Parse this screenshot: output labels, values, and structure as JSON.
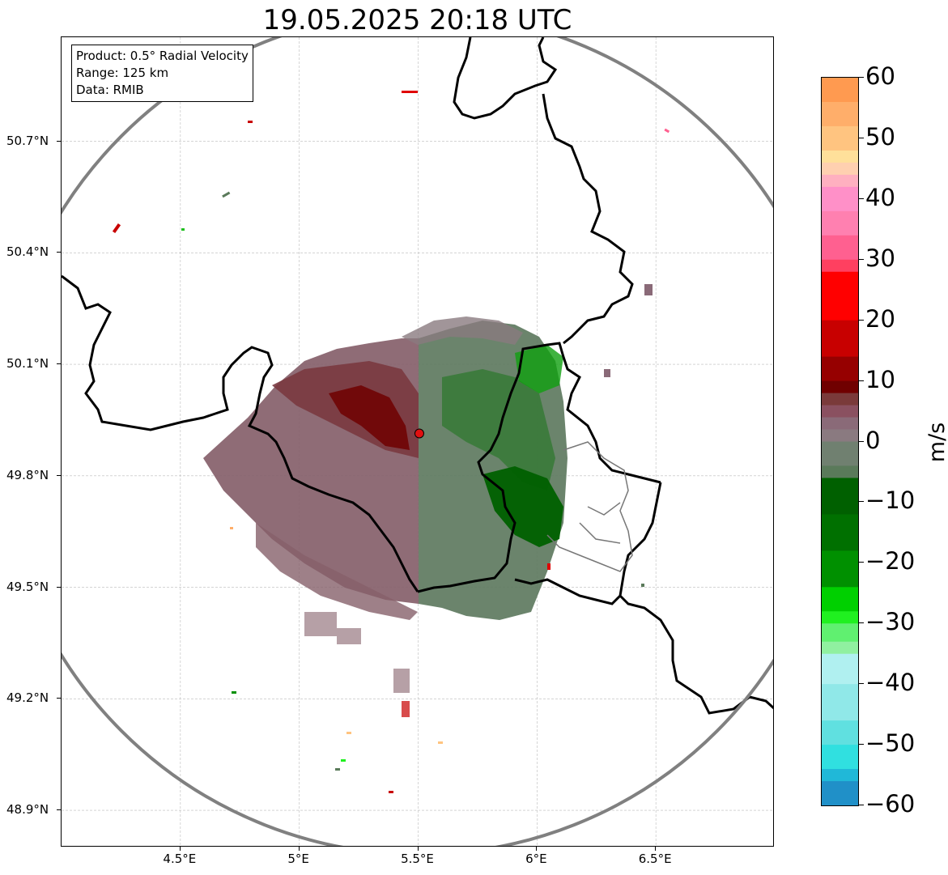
{
  "title": "19.05.2025 20:18 UTC",
  "info_box": {
    "product": "Product: 0.5° Radial Velocity",
    "range": "Range: 125 km",
    "data": "Data: RMIB"
  },
  "axes": {
    "lon_range": [
      4.0,
      7.0
    ],
    "lat_range": [
      48.8,
      50.98
    ],
    "lon_ticks": [
      {
        "value": 4.5,
        "label": "4.5°E"
      },
      {
        "value": 5.0,
        "label": "5°E"
      },
      {
        "value": 5.5,
        "label": "5.5°E"
      },
      {
        "value": 6.0,
        "label": "6°E"
      },
      {
        "value": 6.5,
        "label": "6.5°E"
      }
    ],
    "lat_ticks": [
      {
        "value": 50.7,
        "label": "50.7°N"
      },
      {
        "value": 50.4,
        "label": "50.4°N"
      },
      {
        "value": 50.1,
        "label": "50.1°N"
      },
      {
        "value": 49.8,
        "label": "49.8°N"
      },
      {
        "value": 49.5,
        "label": "49.5°N"
      },
      {
        "value": 49.2,
        "label": "49.2°N"
      },
      {
        "value": 48.9,
        "label": "48.9°N"
      }
    ],
    "gridlines": true
  },
  "radar": {
    "site_lon": 5.505,
    "site_lat": 49.914,
    "site_marker_color": "#e01010",
    "range_ring_color": "#808080"
  },
  "colorbar": {
    "unit": "m/s",
    "min": -60,
    "max": 60,
    "ticks": [
      {
        "value": 60,
        "label": "60"
      },
      {
        "value": 50,
        "label": "50"
      },
      {
        "value": 40,
        "label": "40"
      },
      {
        "value": 30,
        "label": "30"
      },
      {
        "value": 20,
        "label": "20"
      },
      {
        "value": 10,
        "label": "10"
      },
      {
        "value": 0,
        "label": "0"
      },
      {
        "value": -10,
        "label": "−10"
      },
      {
        "value": -20,
        "label": "−20"
      },
      {
        "value": -30,
        "label": "−30"
      },
      {
        "value": -40,
        "label": "−40"
      },
      {
        "value": -50,
        "label": "−50"
      },
      {
        "value": -60,
        "label": "−60"
      }
    ],
    "stops": [
      {
        "v": 60,
        "color": "#ff9a50"
      },
      {
        "v": 56,
        "color": "#ffae6a"
      },
      {
        "v": 52,
        "color": "#ffc480"
      },
      {
        "v": 48,
        "color": "#ffe09a"
      },
      {
        "v": 46,
        "color": "#ffd0b0"
      },
      {
        "v": 44,
        "color": "#ffb0c0"
      },
      {
        "v": 42,
        "color": "#ff90c8"
      },
      {
        "v": 38,
        "color": "#ff80b0"
      },
      {
        "v": 34,
        "color": "#ff6090"
      },
      {
        "v": 30,
        "color": "#ff4060"
      },
      {
        "v": 28,
        "color": "#ff0000"
      },
      {
        "v": 20,
        "color": "#c80000"
      },
      {
        "v": 14,
        "color": "#960000"
      },
      {
        "v": 10,
        "color": "#700000"
      },
      {
        "v": 8,
        "color": "#7a3a3a"
      },
      {
        "v": 6,
        "color": "#8a5060"
      },
      {
        "v": 4,
        "color": "#8a6a78"
      },
      {
        "v": 2,
        "color": "#8a7a80"
      },
      {
        "v": 0,
        "color": "#708070"
      },
      {
        "v": -4,
        "color": "#5a7a5a"
      },
      {
        "v": -6,
        "color": "#006000"
      },
      {
        "v": -12,
        "color": "#007000"
      },
      {
        "v": -18,
        "color": "#009000"
      },
      {
        "v": -24,
        "color": "#00d000"
      },
      {
        "v": -28,
        "color": "#20f020"
      },
      {
        "v": -30,
        "color": "#60f070"
      },
      {
        "v": -33,
        "color": "#90f0a0"
      },
      {
        "v": -35,
        "color": "#b0f0f0"
      },
      {
        "v": -40,
        "color": "#90e8e8"
      },
      {
        "v": -46,
        "color": "#60e0e0"
      },
      {
        "v": -50,
        "color": "#30e0e0"
      },
      {
        "v": -54,
        "color": "#20b8d8"
      },
      {
        "v": -56,
        "color": "#2090c8"
      },
      {
        "v": -60,
        "color": "#1f77b4"
      }
    ]
  }
}
